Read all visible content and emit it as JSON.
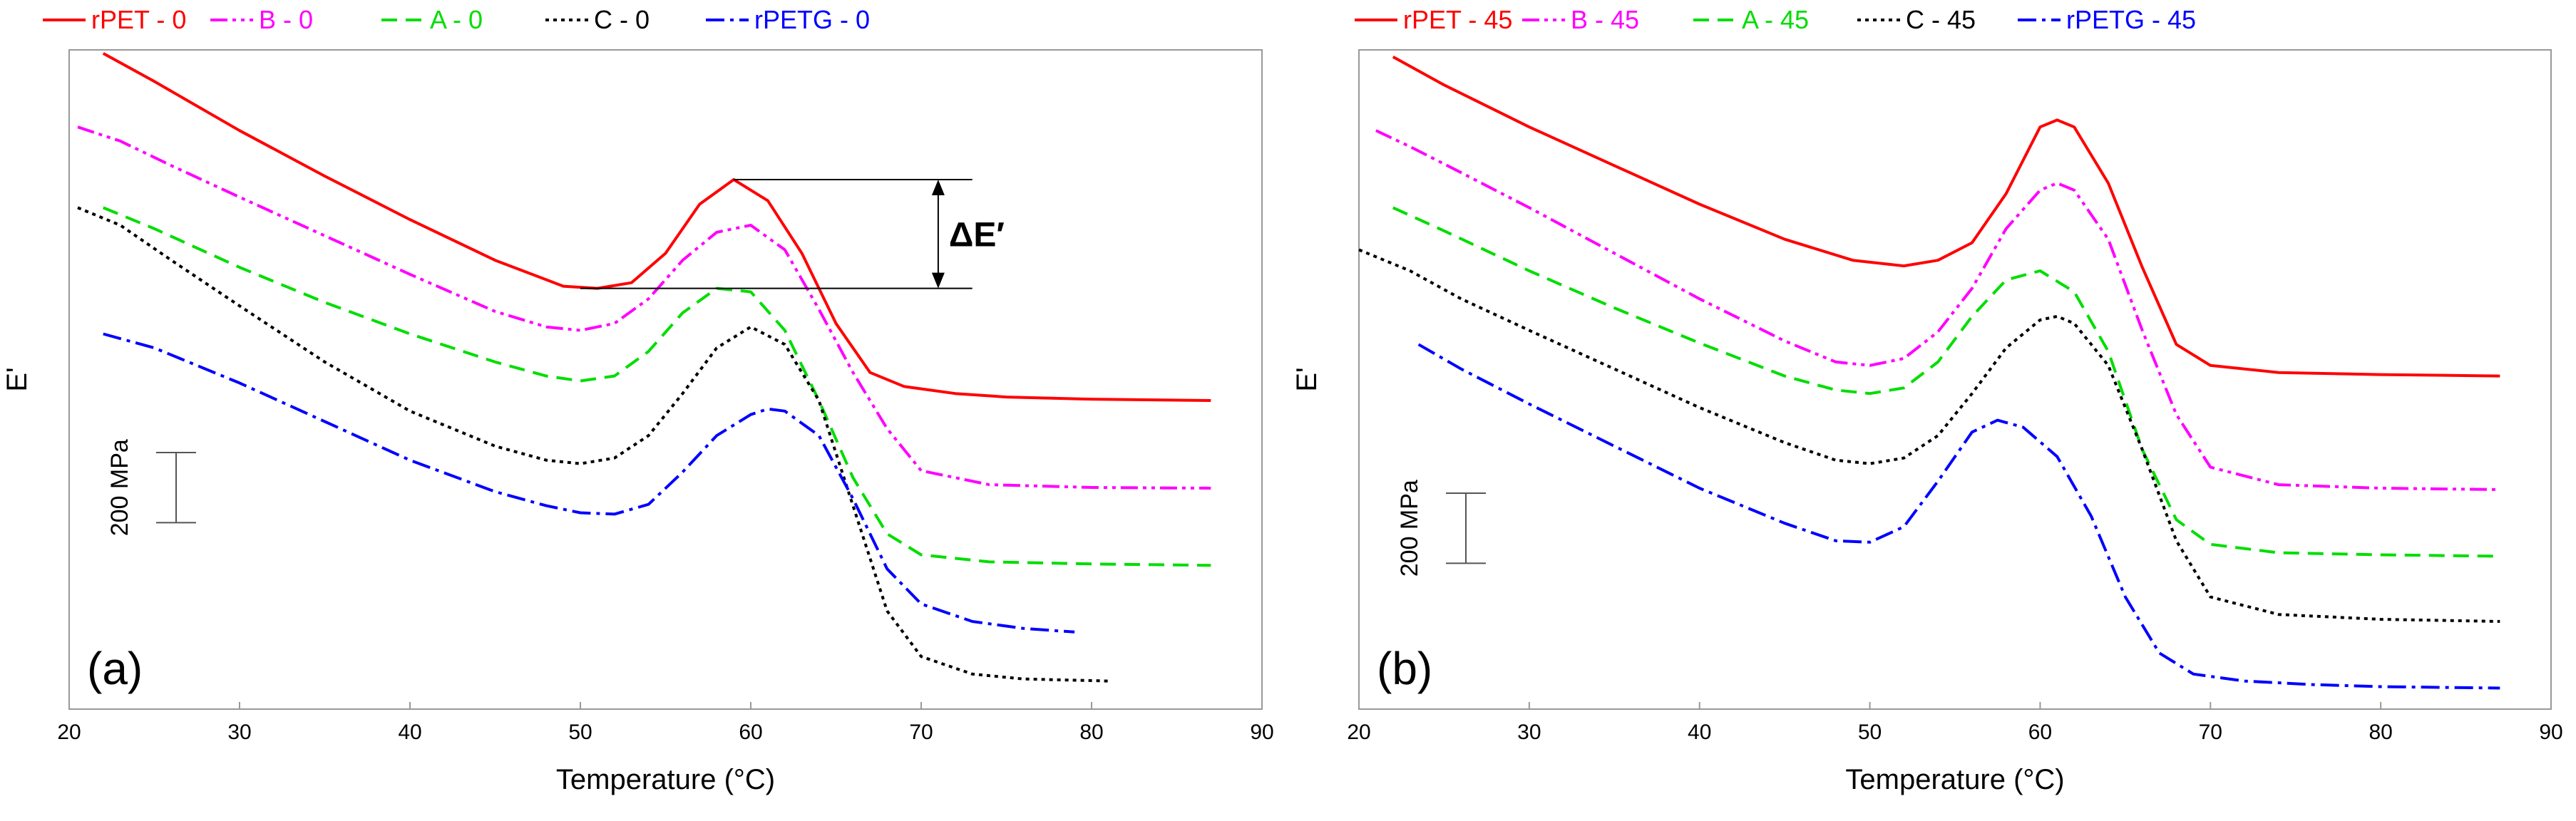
{
  "chart_data": [
    {
      "type": "line",
      "panel_label": "(a)",
      "xlabel": "Temperature (°C)",
      "ylabel": "E'",
      "xlim": [
        20,
        90
      ],
      "xticks": [
        "20",
        "30",
        "40",
        "50",
        "60",
        "70",
        "80",
        "90"
      ],
      "ylim": [
        -40,
        900
      ],
      "y_ticks_shown": false,
      "grid": false,
      "legend_position": "top",
      "scale_bar_label": "200 MPa",
      "scale_bar_value": 100,
      "annotation": "ΔE′",
      "series": [
        {
          "name": "rPET - 0",
          "color": "#ff0000",
          "dash": "solid",
          "x": [
            22,
            25,
            30,
            35,
            40,
            45,
            49,
            51,
            53,
            55,
            57,
            59,
            61,
            63,
            65,
            67,
            69,
            72,
            75,
            80,
            87
          ],
          "y": [
            895,
            855,
            785,
            720,
            658,
            600,
            563,
            560,
            568,
            610,
            680,
            715,
            685,
            610,
            510,
            440,
            420,
            410,
            405,
            402,
            400
          ]
        },
        {
          "name": "B - 0",
          "color": "#ff00ff",
          "dash": "dash-dot-dot",
          "x": [
            20.5,
            23,
            26,
            30,
            35,
            40,
            45,
            48,
            50,
            52,
            54,
            56,
            58,
            60,
            62,
            64,
            66,
            68,
            70,
            74,
            80,
            87
          ],
          "y": [
            790,
            770,
            735,
            690,
            635,
            580,
            527,
            505,
            500,
            510,
            545,
            600,
            640,
            650,
            615,
            530,
            440,
            360,
            300,
            280,
            276,
            275
          ]
        },
        {
          "name": "A - 0",
          "color": "#00dd00",
          "dash": "dash",
          "x": [
            22,
            25,
            30,
            35,
            40,
            45,
            48,
            50,
            52,
            54,
            56,
            58,
            60,
            62,
            64,
            66,
            68,
            70,
            74,
            80,
            87
          ],
          "y": [
            675,
            645,
            590,
            540,
            495,
            455,
            435,
            428,
            435,
            470,
            525,
            560,
            555,
            500,
            400,
            290,
            210,
            180,
            170,
            167,
            165
          ]
        },
        {
          "name": "C - 0",
          "color": "#000000",
          "dash": "dot",
          "x": [
            20.5,
            23,
            26,
            30,
            35,
            40,
            45,
            48,
            50,
            52,
            54,
            56,
            58,
            60,
            62,
            64,
            66,
            68,
            70,
            73,
            76,
            81
          ],
          "y": [
            675,
            650,
            600,
            535,
            455,
            385,
            335,
            315,
            310,
            318,
            350,
            410,
            475,
            505,
            480,
            400,
            250,
            100,
            35,
            10,
            3,
            0
          ]
        },
        {
          "name": "rPETG - 0",
          "color": "#0000ff",
          "dash": "dash-dot",
          "x": [
            22,
            25,
            30,
            35,
            40,
            45,
            48,
            50,
            52,
            54,
            56,
            58,
            60,
            61,
            62,
            64,
            66,
            68,
            70,
            73,
            76,
            79
          ],
          "y": [
            495,
            475,
            425,
            370,
            315,
            270,
            250,
            240,
            238,
            252,
            298,
            350,
            380,
            388,
            385,
            350,
            260,
            160,
            110,
            85,
            75,
            70
          ]
        }
      ],
      "delta_lines": {
        "y_high": 715,
        "y_low": 560,
        "x_peak": 59,
        "x_min": 50,
        "x_right": 73,
        "x_arrow": 71
      }
    },
    {
      "type": "line",
      "panel_label": "(b)",
      "xlabel": "Temperature (°C)",
      "ylabel": "E'",
      "xlim": [
        20,
        90
      ],
      "xticks": [
        "20",
        "30",
        "40",
        "50",
        "60",
        "70",
        "80",
        "90"
      ],
      "ylim": [
        -40,
        900
      ],
      "y_ticks_shown": false,
      "grid": false,
      "legend_position": "top",
      "scale_bar_label": "200 MPa",
      "scale_bar_value": 100,
      "series": [
        {
          "name": "rPET - 45",
          "color": "#ff0000",
          "dash": "solid",
          "x": [
            22,
            25,
            30,
            35,
            40,
            45,
            49,
            52,
            54,
            56,
            58,
            60,
            61,
            62,
            64,
            66,
            68,
            70,
            74,
            80,
            87
          ],
          "y": [
            890,
            850,
            790,
            735,
            680,
            630,
            600,
            592,
            600,
            625,
            695,
            790,
            800,
            790,
            710,
            590,
            480,
            450,
            440,
            437,
            435
          ]
        },
        {
          "name": "B - 45",
          "color": "#ff00ff",
          "dash": "dash-dot-dot",
          "x": [
            21,
            23,
            26,
            30,
            35,
            40,
            45,
            48,
            50,
            52,
            54,
            56,
            58,
            60,
            61,
            62,
            64,
            66,
            68,
            70,
            74,
            80,
            87
          ],
          "y": [
            785,
            762,
            725,
            675,
            610,
            545,
            485,
            455,
            450,
            460,
            498,
            560,
            645,
            700,
            710,
            700,
            630,
            500,
            380,
            305,
            280,
            275,
            273
          ]
        },
        {
          "name": "A - 45",
          "color": "#00dd00",
          "dash": "dash",
          "x": [
            22,
            25,
            30,
            35,
            40,
            45,
            48,
            50,
            52,
            54,
            56,
            58,
            60,
            62,
            64,
            66,
            68,
            70,
            74,
            80,
            87
          ],
          "y": [
            675,
            642,
            585,
            532,
            482,
            435,
            415,
            410,
            418,
            455,
            520,
            572,
            585,
            555,
            470,
            330,
            230,
            195,
            183,
            180,
            178
          ]
        },
        {
          "name": "C - 45",
          "color": "#000000",
          "dash": "dot",
          "x": [
            20,
            23,
            26,
            30,
            35,
            40,
            45,
            48,
            50,
            52,
            54,
            56,
            58,
            60,
            61,
            62,
            64,
            66,
            68,
            70,
            74,
            80,
            87
          ],
          "y": [
            615,
            585,
            545,
            500,
            445,
            390,
            340,
            315,
            310,
            318,
            350,
            410,
            475,
            515,
            520,
            510,
            450,
            330,
            200,
            120,
            95,
            88,
            85
          ]
        },
        {
          "name": "rPETG - 45",
          "color": "#0000ff",
          "dash": "dash-dot",
          "x": [
            23.5,
            26,
            30,
            35,
            40,
            45,
            48,
            50,
            52,
            54,
            56,
            57.5,
            59,
            61,
            63,
            65,
            67,
            69,
            72,
            76,
            80,
            87
          ],
          "y": [
            480,
            445,
            395,
            335,
            275,
            225,
            200,
            198,
            220,
            285,
            355,
            372,
            362,
            320,
            235,
            120,
            40,
            10,
            0,
            -5,
            -8,
            -10
          ]
        }
      ]
    }
  ]
}
